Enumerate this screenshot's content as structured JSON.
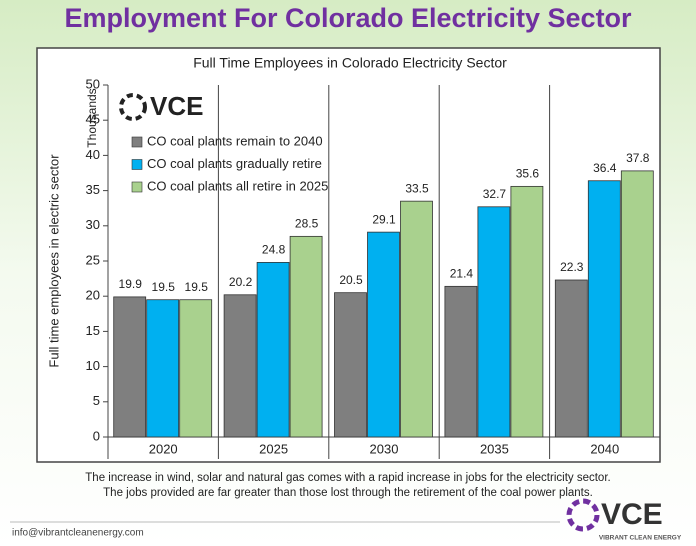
{
  "header": {
    "title": "Employment For Colorado Electricity Sector"
  },
  "chart_data": {
    "type": "bar",
    "title": "Full Time Employees in Colorado Electricity Sector",
    "ylabel": "Full time employees in electric sector",
    "yunit": "Thousands",
    "logo": "VCE",
    "categories": [
      "2020",
      "2025",
      "2030",
      "2035",
      "2040"
    ],
    "series": [
      {
        "name": "CO coal plants remain to 2040",
        "color": "#7f7f7f",
        "values": [
          19.9,
          20.2,
          20.5,
          21.4,
          22.3
        ]
      },
      {
        "name": "CO coal plants gradually retire",
        "color": "#00b0f0",
        "values": [
          19.5,
          24.8,
          29.1,
          32.7,
          36.4
        ]
      },
      {
        "name": "CO coal plants all retire in 2025",
        "color": "#a9d18e",
        "values": [
          19.5,
          28.5,
          33.5,
          35.6,
          37.8
        ]
      }
    ],
    "ylim": [
      0,
      50
    ],
    "yticks": [
      0,
      5,
      10,
      15,
      20,
      25,
      30,
      35,
      40,
      45,
      50
    ]
  },
  "caption": [
    "The increase in wind, solar and natural gas comes with a rapid increase in jobs for the electricity sector.",
    "The jobs provided are far greater than those lost through the retirement of the coal power plants."
  ],
  "footer": {
    "email": "info@vibrantcleanenergy.com",
    "logo": "VCE",
    "logo_subtitle": "VIBRANT CLEAN ENERGY"
  }
}
